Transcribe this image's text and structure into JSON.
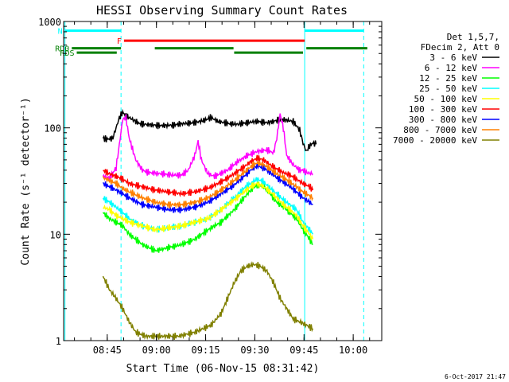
{
  "chart_data": {
    "type": "line",
    "title": "HESSI Observing Summary Count Rates",
    "xlabel": "Start Time (06-Nov-15 08:31:42)",
    "ylabel": "Count Rate (s⁻¹ detector⁻¹)",
    "footer_timestamp": "6-Oct-2017 21:47",
    "x_unit": "minutes after 08:31:42",
    "xlim": [
      0,
      97
    ],
    "ylim": [
      1,
      1000
    ],
    "yscale": "log",
    "grid": false,
    "x_ticks": [
      {
        "value": 13.3,
        "label": "08:45"
      },
      {
        "value": 28.3,
        "label": "09:00"
      },
      {
        "value": 43.3,
        "label": "09:15"
      },
      {
        "value": 58.3,
        "label": "09:30"
      },
      {
        "value": 73.3,
        "label": "09:45"
      },
      {
        "value": 88.3,
        "label": "10:00"
      }
    ],
    "y_ticks": [
      {
        "value": 1,
        "label": "1"
      },
      {
        "value": 10,
        "label": "10"
      },
      {
        "value": 100,
        "label": "100"
      },
      {
        "value": 1000,
        "label": "1000"
      }
    ],
    "legend": {
      "placement": "right",
      "header": [
        "Det 1,5,7,",
        "FDecim 2, Att 0"
      ]
    },
    "series": [
      {
        "name": "3 - 6 keV",
        "color": "#000000",
        "points": [
          [
            12,
            80
          ],
          [
            13,
            78
          ],
          [
            15,
            80
          ],
          [
            16,
            100
          ],
          [
            17,
            125
          ],
          [
            18,
            140
          ],
          [
            19,
            130
          ],
          [
            21,
            120
          ],
          [
            23,
            110
          ],
          [
            26,
            107
          ],
          [
            30,
            105
          ],
          [
            33,
            106
          ],
          [
            37,
            110
          ],
          [
            40,
            112
          ],
          [
            43,
            118
          ],
          [
            45,
            125
          ],
          [
            47,
            115
          ],
          [
            50,
            110
          ],
          [
            53,
            108
          ],
          [
            56,
            112
          ],
          [
            59,
            115
          ],
          [
            62,
            112
          ],
          [
            64,
            115
          ],
          [
            66,
            120
          ],
          [
            68,
            118
          ],
          [
            70,
            115
          ],
          [
            72,
            95
          ],
          [
            73,
            72
          ],
          [
            74,
            60
          ],
          [
            75,
            68
          ],
          [
            76,
            72
          ],
          [
            77,
            70
          ]
        ]
      },
      {
        "name": "6 - 12 keV",
        "color": "#ff00ff",
        "points": [
          [
            12,
            35
          ],
          [
            14,
            34
          ],
          [
            16,
            42
          ],
          [
            17,
            70
          ],
          [
            18,
            120
          ],
          [
            19,
            125
          ],
          [
            20,
            80
          ],
          [
            22,
            50
          ],
          [
            24,
            40
          ],
          [
            26,
            38
          ],
          [
            30,
            37
          ],
          [
            33,
            36
          ],
          [
            36,
            36
          ],
          [
            38,
            40
          ],
          [
            40,
            55
          ],
          [
            41,
            75
          ],
          [
            42,
            50
          ],
          [
            44,
            37
          ],
          [
            46,
            35
          ],
          [
            50,
            40
          ],
          [
            53,
            48
          ],
          [
            56,
            55
          ],
          [
            59,
            60
          ],
          [
            62,
            62
          ],
          [
            64,
            58
          ],
          [
            65,
            80
          ],
          [
            66,
            135
          ],
          [
            67,
            100
          ],
          [
            68,
            55
          ],
          [
            70,
            45
          ],
          [
            72,
            40
          ],
          [
            73,
            40
          ],
          [
            74,
            38
          ],
          [
            76,
            37
          ]
        ]
      },
      {
        "name": "12 - 25 keV",
        "color": "#00ff00",
        "points": [
          [
            12,
            16
          ],
          [
            14,
            14
          ],
          [
            16,
            13
          ],
          [
            18,
            12
          ],
          [
            20,
            10
          ],
          [
            24,
            8
          ],
          [
            28,
            7
          ],
          [
            32,
            7.5
          ],
          [
            36,
            8
          ],
          [
            40,
            9
          ],
          [
            44,
            11
          ],
          [
            48,
            13
          ],
          [
            52,
            17
          ],
          [
            55,
            22
          ],
          [
            57,
            26
          ],
          [
            59,
            29
          ],
          [
            61,
            28
          ],
          [
            63,
            24
          ],
          [
            65,
            20
          ],
          [
            67,
            18
          ],
          [
            69,
            16
          ],
          [
            71,
            14
          ],
          [
            73,
            11
          ],
          [
            75,
            9
          ],
          [
            76,
            8
          ]
        ]
      },
      {
        "name": "25 - 50 keV",
        "color": "#00ffff",
        "points": [
          [
            12,
            22
          ],
          [
            14,
            20
          ],
          [
            16,
            18
          ],
          [
            18,
            16
          ],
          [
            20,
            14
          ],
          [
            24,
            12
          ],
          [
            28,
            11
          ],
          [
            32,
            11.5
          ],
          [
            36,
            12
          ],
          [
            40,
            13
          ],
          [
            44,
            14
          ],
          [
            48,
            17
          ],
          [
            52,
            22
          ],
          [
            55,
            27
          ],
          [
            57,
            30
          ],
          [
            59,
            33
          ],
          [
            61,
            31
          ],
          [
            63,
            27
          ],
          [
            65,
            24
          ],
          [
            67,
            21
          ],
          [
            69,
            19
          ],
          [
            71,
            17
          ],
          [
            73,
            13
          ],
          [
            75,
            11
          ],
          [
            76,
            10
          ]
        ]
      },
      {
        "name": "50 - 100 keV",
        "color": "#ffff00",
        "points": [
          [
            12,
            18
          ],
          [
            14,
            17
          ],
          [
            16,
            15
          ],
          [
            18,
            14
          ],
          [
            20,
            13
          ],
          [
            24,
            12
          ],
          [
            28,
            11
          ],
          [
            32,
            11.5
          ],
          [
            36,
            12
          ],
          [
            40,
            13
          ],
          [
            44,
            14
          ],
          [
            48,
            17
          ],
          [
            52,
            21
          ],
          [
            55,
            25
          ],
          [
            57,
            28
          ],
          [
            59,
            30
          ],
          [
            61,
            28
          ],
          [
            63,
            25
          ],
          [
            65,
            22
          ],
          [
            67,
            19
          ],
          [
            69,
            17
          ],
          [
            71,
            15
          ],
          [
            73,
            12
          ],
          [
            75,
            10
          ],
          [
            76,
            9
          ]
        ]
      },
      {
        "name": "100 - 300 keV",
        "color": "#ff0000",
        "points": [
          [
            12,
            40
          ],
          [
            14,
            37
          ],
          [
            16,
            35
          ],
          [
            18,
            33
          ],
          [
            20,
            30
          ],
          [
            24,
            28
          ],
          [
            28,
            26
          ],
          [
            32,
            25
          ],
          [
            36,
            24
          ],
          [
            40,
            25
          ],
          [
            44,
            27
          ],
          [
            48,
            31
          ],
          [
            52,
            37
          ],
          [
            55,
            43
          ],
          [
            57,
            48
          ],
          [
            59,
            52
          ],
          [
            61,
            50
          ],
          [
            63,
            45
          ],
          [
            65,
            41
          ],
          [
            67,
            38
          ],
          [
            69,
            36
          ],
          [
            71,
            33
          ],
          [
            73,
            30
          ],
          [
            75,
            28
          ],
          [
            76,
            26
          ]
        ]
      },
      {
        "name": "300 - 800 keV",
        "color": "#0000ff",
        "points": [
          [
            12,
            30
          ],
          [
            14,
            28
          ],
          [
            16,
            26
          ],
          [
            18,
            24
          ],
          [
            20,
            22
          ],
          [
            24,
            19
          ],
          [
            28,
            18
          ],
          [
            32,
            17
          ],
          [
            36,
            17
          ],
          [
            40,
            18
          ],
          [
            44,
            20
          ],
          [
            48,
            24
          ],
          [
            52,
            29
          ],
          [
            55,
            35
          ],
          [
            57,
            40
          ],
          [
            59,
            44
          ],
          [
            61,
            42
          ],
          [
            63,
            38
          ],
          [
            65,
            34
          ],
          [
            67,
            31
          ],
          [
            69,
            28
          ],
          [
            71,
            25
          ],
          [
            73,
            22
          ],
          [
            75,
            20
          ],
          [
            76,
            19
          ]
        ]
      },
      {
        "name": "800 - 7000 keV",
        "color": "#ff8000",
        "points": [
          [
            12,
            34
          ],
          [
            14,
            32
          ],
          [
            16,
            30
          ],
          [
            18,
            27
          ],
          [
            20,
            25
          ],
          [
            24,
            22
          ],
          [
            28,
            20
          ],
          [
            32,
            19
          ],
          [
            36,
            19
          ],
          [
            40,
            20
          ],
          [
            44,
            22
          ],
          [
            48,
            26
          ],
          [
            52,
            32
          ],
          [
            55,
            38
          ],
          [
            57,
            43
          ],
          [
            59,
            47
          ],
          [
            61,
            45
          ],
          [
            63,
            41
          ],
          [
            65,
            37
          ],
          [
            67,
            34
          ],
          [
            69,
            31
          ],
          [
            71,
            28
          ],
          [
            73,
            25
          ],
          [
            75,
            23
          ],
          [
            76,
            22
          ]
        ]
      },
      {
        "name": "7000 - 20000 keV",
        "color": "#808000",
        "points": [
          [
            12,
            4
          ],
          [
            13,
            3.5
          ],
          [
            14,
            3
          ],
          [
            16,
            2.5
          ],
          [
            18,
            2
          ],
          [
            20,
            1.5
          ],
          [
            22,
            1.2
          ],
          [
            25,
            1.1
          ],
          [
            30,
            1.1
          ],
          [
            35,
            1.1
          ],
          [
            40,
            1.2
          ],
          [
            45,
            1.4
          ],
          [
            48,
            1.8
          ],
          [
            50,
            2.5
          ],
          [
            52,
            3.5
          ],
          [
            54,
            4.5
          ],
          [
            56,
            5
          ],
          [
            58,
            5.2
          ],
          [
            60,
            5
          ],
          [
            62,
            4.5
          ],
          [
            64,
            3.5
          ],
          [
            66,
            2.5
          ],
          [
            68,
            2
          ],
          [
            70,
            1.6
          ],
          [
            72,
            1.5
          ],
          [
            74,
            1.4
          ],
          [
            76,
            1.3
          ]
        ]
      }
    ],
    "annotations": {
      "vertical_lines": [
        {
          "x": 0.4,
          "color": "#00ffff",
          "style": "solid"
        },
        {
          "x": 17.5,
          "color": "#00ffff",
          "style": "dashed"
        },
        {
          "x": 73.5,
          "color": "#00ffff",
          "style": "solid"
        },
        {
          "x": 91.5,
          "color": "#00ffff",
          "style": "dashed"
        }
      ],
      "flag_bars": [
        {
          "label": "N",
          "color": "#00ffff",
          "y": 820,
          "segments": [
            [
              0.4,
              17.5
            ],
            [
              73.5,
              91.5
            ]
          ]
        },
        {
          "label": "F",
          "color": "#ff0000",
          "y": 660,
          "segments": [
            [
              18.4,
              73.5
            ]
          ]
        },
        {
          "label": "RD0",
          "color": "#008000",
          "y": 560,
          "segments": [
            [
              2.5,
              17.5
            ],
            [
              27.8,
              51.8
            ],
            [
              74,
              92.6
            ]
          ]
        },
        {
          "label": "RDS",
          "color": "#008000",
          "y": 510,
          "segments": [
            [
              4,
              16.2
            ],
            [
              52,
              73
            ]
          ]
        }
      ]
    }
  }
}
